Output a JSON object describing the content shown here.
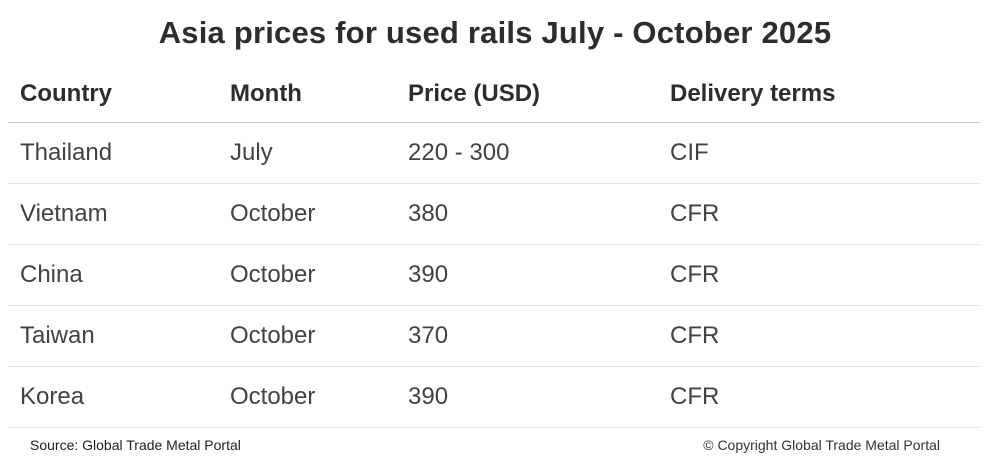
{
  "title": "Asia prices for used rails July - October 2025",
  "chart_data": {
    "type": "table",
    "title": "Asia prices for used rails July - October 2025",
    "columns": [
      "Country",
      "Month",
      "Price (USD)",
      "Delivery terms"
    ],
    "rows": [
      [
        "Thailand",
        "July",
        "220 - 300",
        "CIF"
      ],
      [
        "Vietnam",
        "October",
        "380",
        "CFR"
      ],
      [
        "China",
        "October",
        "390",
        "CFR"
      ],
      [
        "Taiwan",
        "October",
        "370",
        "CFR"
      ],
      [
        "Korea",
        "October",
        "390",
        "CFR"
      ]
    ],
    "notes": {
      "price_unit": "USD",
      "period": "July - October 2025"
    }
  },
  "footer": {
    "source": "Source: Global Trade Metal Portal",
    "copyright": "© Copyright Global Trade Metal Portal"
  },
  "colors": {
    "background": "#ffffff",
    "title_text": "#2b2d30",
    "header_text": "#2b2d30",
    "body_text": "#404244",
    "header_rule": "#c7c7c7",
    "row_rule": "#e4e4e4"
  }
}
